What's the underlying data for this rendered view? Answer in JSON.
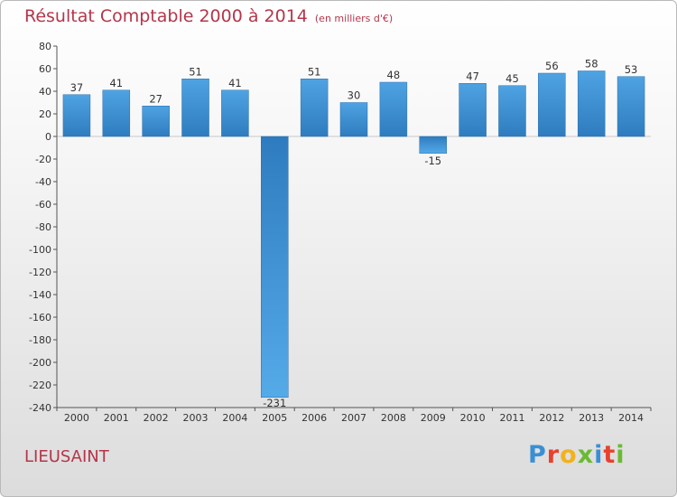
{
  "title": "Résultat Comptable 2000 à 2014",
  "unit": "(en milliers d'€)",
  "commune": "LIEUSAINT",
  "logo": {
    "letters": [
      "P",
      "r",
      "o",
      "x",
      "i",
      "t",
      "i"
    ],
    "colors": [
      "#3a8fd4",
      "#e8412d",
      "#f2b21e",
      "#6aba34",
      "#3a8fd4",
      "#e8412d",
      "#6aba34"
    ]
  },
  "chart_data": {
    "type": "bar",
    "categories": [
      "2000",
      "2001",
      "2002",
      "2003",
      "2004",
      "2005",
      "2006",
      "2007",
      "2008",
      "2009",
      "2010",
      "2011",
      "2012",
      "2013",
      "2014"
    ],
    "values": [
      37,
      41,
      27,
      51,
      41,
      -231,
      51,
      30,
      48,
      -15,
      47,
      45,
      56,
      58,
      53
    ],
    "ylim": [
      -240,
      80
    ],
    "yticks": [
      80,
      60,
      40,
      20,
      0,
      -20,
      -40,
      -60,
      -80,
      -100,
      -120,
      -140,
      -160,
      -180,
      -200,
      -220,
      -240
    ],
    "grid": false,
    "legend": "none",
    "bar_color": "#3a8fd0"
  }
}
